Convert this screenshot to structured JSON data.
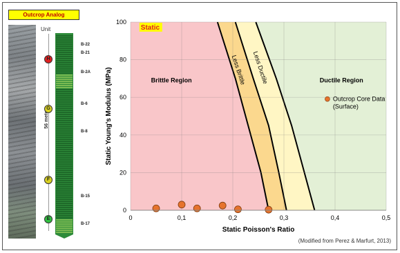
{
  "left_panel": {
    "title": "Outcrop Analog",
    "unit_header": "Unit",
    "thickness_label": "56 meters",
    "units": [
      {
        "label": "H",
        "color": "#e02020",
        "pos": 0.13
      },
      {
        "label": "G",
        "color": "#d8d020",
        "pos": 0.38
      },
      {
        "label": "F",
        "color": "#d8d020",
        "pos": 0.74
      },
      {
        "label": "E",
        "color": "#30c040",
        "pos": 0.94
      }
    ],
    "beds": [
      "B-22",
      "B-21",
      "B-2A",
      "B-6",
      "B-8",
      "B-15",
      "B-17"
    ]
  },
  "credit": "(Modified from Perez & Marfurt, 2013)",
  "chart_data": {
    "type": "scatter",
    "xlabel": "Static Poisson's Ratio",
    "ylabel": "Static Young's Modulus (MPa)",
    "xlim": [
      0,
      0.5
    ],
    "ylim": [
      0,
      100
    ],
    "xticks": [
      0,
      0.1,
      0.2,
      0.3,
      0.4,
      0.5
    ],
    "xtick_labels": [
      "0",
      "0,1",
      "0,2",
      "0,3",
      "0,4",
      "0,5"
    ],
    "yticks": [
      0,
      20,
      40,
      60,
      80,
      100
    ],
    "ytick_labels": [
      "0",
      "20",
      "40",
      "60",
      "80",
      "100"
    ],
    "static_badge": "Static",
    "regions": {
      "brittle": "Brittle Region",
      "less_brittle": "Less Brittle",
      "less_ductile": "Less Ductile",
      "ductile": "Ductile Region"
    },
    "boundaries": {
      "b1": [
        [
          0.17,
          100
        ],
        [
          0.205,
          70
        ],
        [
          0.23,
          45
        ],
        [
          0.255,
          20
        ],
        [
          0.27,
          0
        ]
      ],
      "b2": [
        [
          0.205,
          100
        ],
        [
          0.24,
          70
        ],
        [
          0.27,
          45
        ],
        [
          0.29,
          20
        ],
        [
          0.305,
          0
        ]
      ],
      "b3": [
        [
          0.245,
          100
        ],
        [
          0.285,
          70
        ],
        [
          0.315,
          45
        ],
        [
          0.34,
          20
        ],
        [
          0.36,
          0
        ]
      ]
    },
    "series": [
      {
        "name": "Outcrop Core Data",
        "name2": "(Surface)",
        "points": [
          {
            "x": 0.05,
            "y": 1.0
          },
          {
            "x": 0.1,
            "y": 3.0
          },
          {
            "x": 0.13,
            "y": 1.0
          },
          {
            "x": 0.18,
            "y": 2.5
          },
          {
            "x": 0.21,
            "y": 0.5
          },
          {
            "x": 0.27,
            "y": 0.3
          }
        ]
      }
    ],
    "colors": {
      "brittle_fill": "#f9c6c9",
      "less_brittle_fill": "#fbd88e",
      "less_ductile_fill": "#fff6c4",
      "ductile_fill": "#e3f0d6",
      "point": "#e6732d",
      "static_badge_bg": "#ffff00",
      "static_badge_text": "#e02020"
    },
    "grid": true,
    "legend_position": "right"
  }
}
